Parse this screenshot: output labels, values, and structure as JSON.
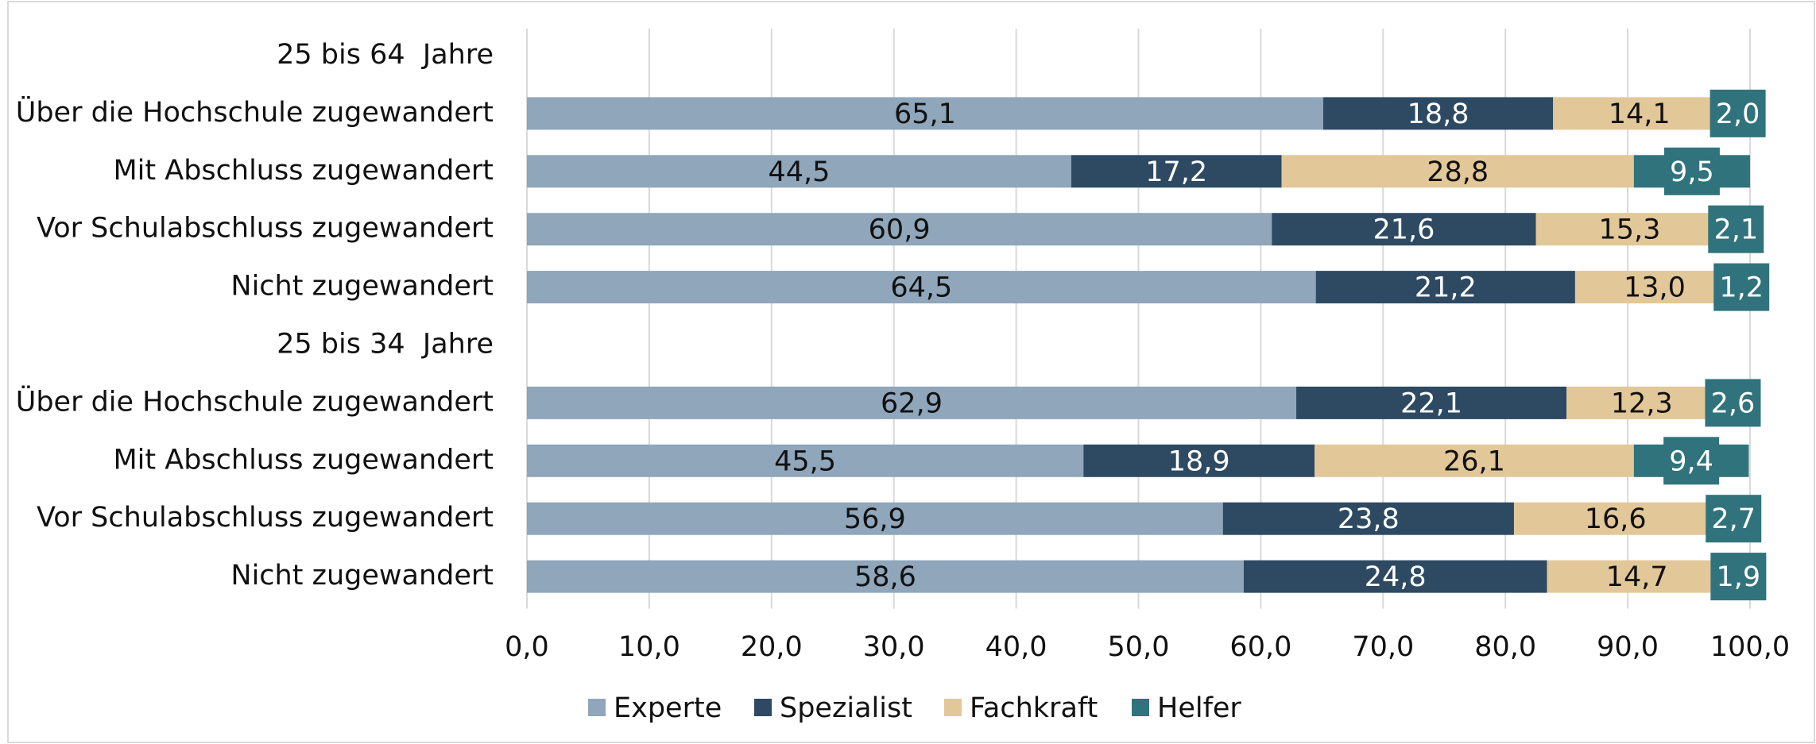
{
  "chart_data": {
    "type": "stacked_barh",
    "categories": [
      "25 bis 64  Jahre",
      "Über die Hochschule zugewandert",
      "Mit Abschluss zugewandert",
      "Vor Schulabschluss zugewandert",
      "Nicht zugewandert",
      "25 bis 34  Jahre",
      "Über die Hochschule zugewandert",
      "Mit Abschluss zugewandert",
      "Vor Schulabschluss zugewandert",
      "Nicht zugewandert"
    ],
    "series": [
      {
        "name": "Experte",
        "color": "#8fa6bb",
        "values": [
          null,
          65.1,
          44.5,
          60.9,
          64.5,
          null,
          62.9,
          45.5,
          56.9,
          58.6
        ],
        "value_labels": [
          null,
          "65,1",
          "44,5",
          "60,9",
          "64,5",
          null,
          "62,9",
          "45,5",
          "56,9",
          "58,6"
        ]
      },
      {
        "name": "Spezialist",
        "color": "#2e4a63",
        "values": [
          null,
          18.8,
          17.2,
          21.6,
          21.2,
          null,
          22.1,
          18.9,
          23.8,
          24.8
        ],
        "value_labels": [
          null,
          "18,8",
          "17,2",
          "21,6",
          "21,2",
          null,
          "22,1",
          "18,9",
          "23,8",
          "24,8"
        ]
      },
      {
        "name": "Fachkraft",
        "color": "#e2c799",
        "values": [
          null,
          14.1,
          28.8,
          15.3,
          13.0,
          null,
          12.3,
          26.1,
          16.6,
          14.7
        ],
        "value_labels": [
          null,
          "14,1",
          "28,8",
          "15,3",
          "13,0",
          null,
          "12,3",
          "26,1",
          "16,6",
          "14,7"
        ]
      },
      {
        "name": "Helfer",
        "color": "#31737c",
        "values": [
          null,
          2.0,
          9.5,
          2.1,
          1.2,
          null,
          2.6,
          9.4,
          2.7,
          1.9
        ],
        "value_labels": [
          null,
          "2,0",
          "9,5",
          "2,1",
          "1,2",
          null,
          "2,6",
          "9,4",
          "2,7",
          "1,9"
        ]
      }
    ],
    "xlim": [
      0,
      100
    ],
    "xticks": [
      {
        "value": 0,
        "label": "0,0"
      },
      {
        "value": 10,
        "label": "10,0"
      },
      {
        "value": 20,
        "label": "20,0"
      },
      {
        "value": 30,
        "label": "30,0"
      },
      {
        "value": 40,
        "label": "40,0"
      },
      {
        "value": 50,
        "label": "50,0"
      },
      {
        "value": 60,
        "label": "60,0"
      },
      {
        "value": 70,
        "label": "70,0"
      },
      {
        "value": 80,
        "label": "80,0"
      },
      {
        "value": 90,
        "label": "90,0"
      },
      {
        "value": 100,
        "label": "100,0"
      }
    ],
    "grid": true
  }
}
